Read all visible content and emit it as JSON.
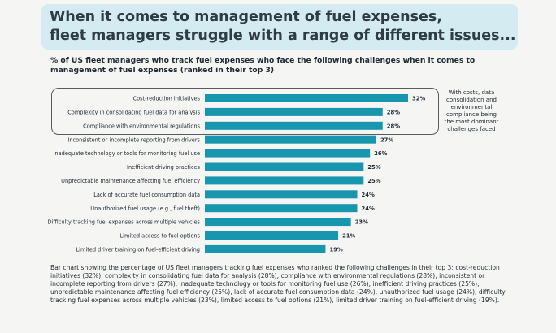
{
  "title": {
    "line1": "When it comes to management of fuel expenses,",
    "line2": "fleet managers struggle with a range of different issues..."
  },
  "subtitle": "% of US fleet managers who track fuel expenses who face the following challenges when it comes to management of fuel expenses (ranked in their top 3)",
  "side_note": "With costs, data consolidation and environmental compliance being the most dominant challenges faced",
  "caption": "Bar chart showing the percentage of US fleet managers tracking fuel expenses who ranked the following challenges in their top 3; cost-reduction initiatives (32%), complexity in consolidating fuel data for analysis (28%), compliance with environmental regulations (28%), inconsistent or incomplete reporting from drivers (27%),   inadequate technology or tools for monitoring fuel use (26%), inefficient driving practices (25%), unpredictable maintenance affecting fuel efficiency (25%), lack of accurate fuel consumption data (24%), unauthorized fuel usage (24%), difficulty tracking fuel expenses across multiple vehicles (23%), limited access to fuel options (21%), limited driver training on fuel-efficient driving (19%).",
  "chart_data": {
    "type": "bar",
    "orientation": "horizontal",
    "categories": [
      "Cost-reduction initiatives",
      "Complexity in consolidating fuel data for analysis",
      "Compliance with environmental regulations",
      "Inconsistent or incomplete reporting from drivers",
      "Inadequate technology or tools for monitoring fuel use",
      "Inefficient driving practices",
      "Unpredictable maintenance affecting fuel efficiency",
      "Lack of accurate fuel consumption data",
      "Unauthorized fuel usage (e.g., fuel theft)",
      "Difficulty tracking fuel expenses across multiple vehicles",
      "Limited access to fuel options",
      "Limited driver training on fuel-efficient driving"
    ],
    "values": [
      32,
      28,
      28,
      27,
      26,
      25,
      25,
      24,
      24,
      23,
      21,
      19
    ],
    "value_labels": [
      "32%",
      "28%",
      "28%",
      "27%",
      "26%",
      "25%",
      "25%",
      "24%",
      "24%",
      "23%",
      "21%",
      "19%"
    ],
    "xlim": [
      0,
      32
    ],
    "highlighted_count": 3,
    "bar_color": "#1796ae",
    "grid": false,
    "legend": "none"
  }
}
